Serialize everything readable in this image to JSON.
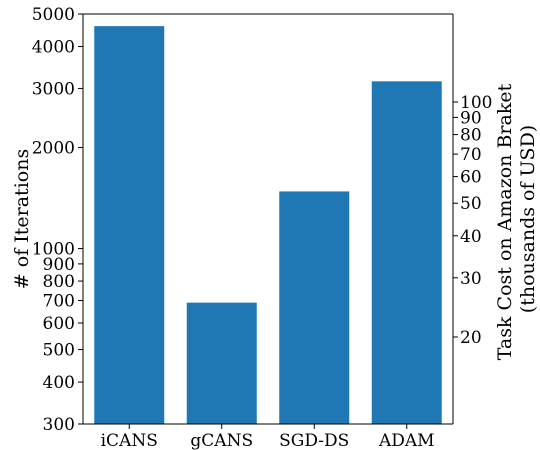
{
  "chart_data": {
    "type": "bar",
    "categories": [
      "iCANS",
      "gCANS",
      "SGD-DS",
      "ADAM"
    ],
    "values": [
      4600,
      690,
      1480,
      3150
    ],
    "bar_color": "#1f77b4",
    "ylabel": "# of Iterations",
    "ylabel_right": [
      "Task Cost on Amazon Braket",
      "(thousands of USD)"
    ],
    "yscale": "log",
    "ylim": [
      300,
      5000
    ],
    "yticks_left": [
      {
        "value": 300,
        "label": "300"
      },
      {
        "value": 400,
        "label": "400"
      },
      {
        "value": 500,
        "label": "500"
      },
      {
        "value": 600,
        "label": "600"
      },
      {
        "value": 700,
        "label": "700"
      },
      {
        "value": 800,
        "label": "800"
      },
      {
        "value": 900,
        "label": "900"
      },
      {
        "value": 1000,
        "label": "1000"
      },
      {
        "value": 2000,
        "label": "2000"
      },
      {
        "value": 3000,
        "label": "3000"
      },
      {
        "value": 4000,
        "label": "4000"
      },
      {
        "value": 5000,
        "label": "5000"
      }
    ],
    "yticks_right": [
      {
        "value": 20,
        "label": "20"
      },
      {
        "value": 30,
        "label": "30"
      },
      {
        "value": 40,
        "label": "40"
      },
      {
        "value": 50,
        "label": "50"
      },
      {
        "value": 60,
        "label": "60"
      },
      {
        "value": 70,
        "label": "70"
      },
      {
        "value": 80,
        "label": "80"
      },
      {
        "value": 90,
        "label": "90"
      },
      {
        "value": 100,
        "label": "100"
      }
    ],
    "grid": false,
    "legend": "none"
  }
}
